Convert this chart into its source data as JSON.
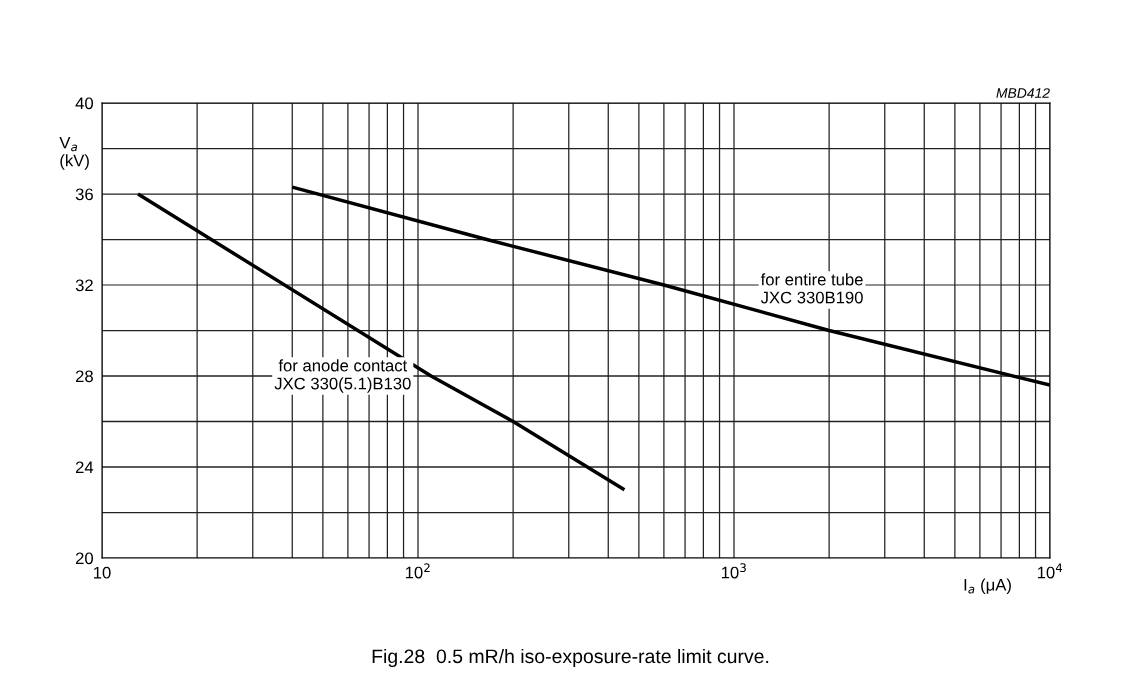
{
  "chart_data": {
    "type": "line",
    "title": "Fig.28  0.5 mR/h iso-exposure-rate limit curve.",
    "xlabel": "I$_{a}$ (μA)",
    "ylabel": "V$_{a}$\n(kV)",
    "log": "x",
    "grid": true,
    "marker": "none",
    "line_style": "solid",
    "xlim": [
      10,
      10000
    ],
    "ylim": [
      20,
      40
    ],
    "xticks": [
      {
        "value": 10,
        "label": "10"
      },
      {
        "value": 20,
        "label": null
      },
      {
        "value": 30,
        "label": null
      },
      {
        "value": 40,
        "label": null
      },
      {
        "value": 50,
        "label": null
      },
      {
        "value": 60,
        "label": null
      },
      {
        "value": 70,
        "label": null
      },
      {
        "value": 80,
        "label": null
      },
      {
        "value": 90,
        "label": null
      },
      {
        "value": 100,
        "label": "10$^{2}$"
      },
      {
        "value": 200,
        "label": null
      },
      {
        "value": 300,
        "label": null
      },
      {
        "value": 400,
        "label": null
      },
      {
        "value": 500,
        "label": null
      },
      {
        "value": 600,
        "label": null
      },
      {
        "value": 700,
        "label": null
      },
      {
        "value": 800,
        "label": null
      },
      {
        "value": 900,
        "label": null
      },
      {
        "value": 1000,
        "label": "10$^{3}$"
      },
      {
        "value": 2000,
        "label": null
      },
      {
        "value": 3000,
        "label": null
      },
      {
        "value": 4000,
        "label": null
      },
      {
        "value": 5000,
        "label": null
      },
      {
        "value": 6000,
        "label": null
      },
      {
        "value": 7000,
        "label": null
      },
      {
        "value": 8000,
        "label": null
      },
      {
        "value": 9000,
        "label": null
      },
      {
        "value": 10000,
        "label": "10$^{4}$"
      }
    ],
    "yticks": [
      20,
      {
        "value": 22,
        "label": null
      },
      24,
      {
        "value": 26,
        "label": null
      },
      28,
      {
        "value": 30,
        "label": null
      },
      32,
      {
        "value": 34,
        "label": null
      },
      36,
      {
        "value": 38,
        "label": null
      },
      40
    ],
    "series": [
      {
        "color": "#000000",
        "x": [
          13,
          110,
          200,
          450
        ],
        "values": [
          36,
          28,
          26,
          23
        ]
      },
      {
        "color": "#000000",
        "x": [
          40,
          165,
          600,
          2000,
          10000
        ],
        "values": [
          36.3,
          34,
          32,
          30,
          27.6
        ]
      }
    ],
    "annotations": [
      "for anode contact\nJXC 330(5.1)B130",
      "for entire tube\nJXC 330B190",
      "MBD412"
    ]
  }
}
